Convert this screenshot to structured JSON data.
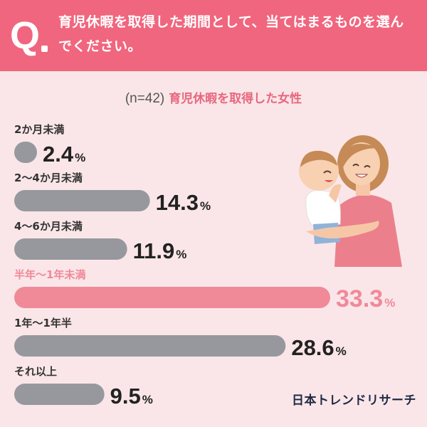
{
  "header": {
    "q_mark": "Q",
    "question": "育児休暇を取得した期間として、当てはまるものを選んでください。"
  },
  "subtitle": {
    "n_label": "(n=42)",
    "target": "育児休暇を取得した女性"
  },
  "brand": "日本トレンドリサーチ",
  "colors": {
    "header": "#f0667e",
    "background": "#fae6e8",
    "bar_default": "#97989d",
    "bar_highlight": "#f08a99",
    "label_default": "#333333",
    "label_highlight": "#f0899a",
    "value_highlight": "#f0899a"
  },
  "chart_data": {
    "type": "bar",
    "orientation": "horizontal",
    "categories": [
      "2か月未満",
      "2〜4か月未満",
      "4〜6か月未満",
      "半年〜1年未満",
      "1年〜1年半",
      "それ以上"
    ],
    "values": [
      2.4,
      14.3,
      11.9,
      33.3,
      28.6,
      9.5
    ],
    "value_labels": [
      "2.4",
      "14.3",
      "11.9",
      "33.3",
      "28.6",
      "9.5"
    ],
    "unit": "%",
    "highlight_index": 3,
    "xlim": [
      0,
      33.3
    ]
  },
  "illustration": "mother-holding-baby"
}
